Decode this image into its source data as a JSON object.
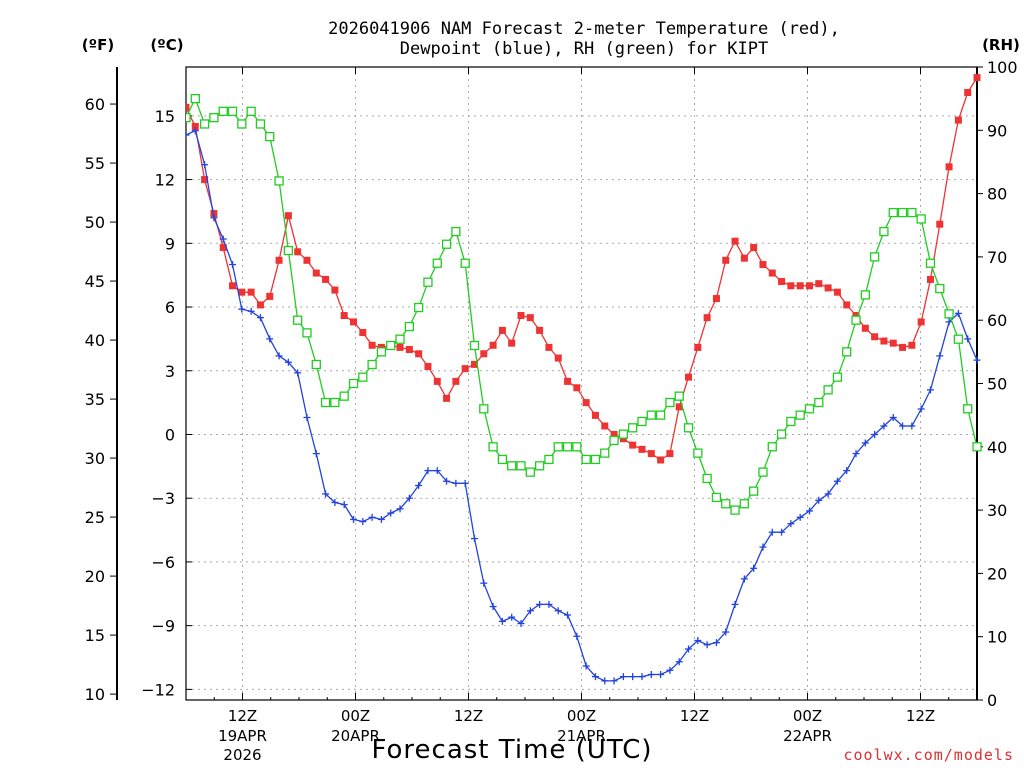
{
  "title_line1": "2026041906 NAM Forecast 2-meter Temperature (red),",
  "title_line2": "Dewpoint (blue), RH (green) for KIPT",
  "unit_f": "(ºF)",
  "unit_c": "(ºC)",
  "unit_rh": "(RH)",
  "xlabel": "Forecast Time (UTC)",
  "credit": "coolwx.com/models",
  "colors": {
    "temperature": "#ee3333",
    "dewpoint": "#2244dd",
    "rh": "#22cc22"
  },
  "chart_data": {
    "type": "line",
    "x_unit": "forecast hour from 2026-04-19 06Z",
    "x_range": [
      0,
      84
    ],
    "x_ticks": [
      {
        "hour": 6,
        "label": "12Z",
        "label2": "19APR",
        "label3": "2026"
      },
      {
        "hour": 18,
        "label": "00Z",
        "label2": "20APR",
        "label3": ""
      },
      {
        "hour": 30,
        "label": "12Z",
        "label2": "",
        "label3": ""
      },
      {
        "hour": 42,
        "label": "00Z",
        "label2": "21APR",
        "label3": ""
      },
      {
        "hour": 54,
        "label": "12Z",
        "label2": "",
        "label3": ""
      },
      {
        "hour": 66,
        "label": "00Z",
        "label2": "22APR",
        "label3": ""
      },
      {
        "hour": 78,
        "label": "12Z",
        "label2": "",
        "label3": ""
      }
    ],
    "y_celsius": {
      "range": [
        -12.5,
        17.3
      ],
      "ticks": [
        "-12",
        "-9",
        "-6",
        "-3",
        "0",
        "3",
        "6",
        "9",
        "12",
        "15"
      ]
    },
    "y_fahrenheit": {
      "ticks": [
        "10",
        "15",
        "20",
        "25",
        "30",
        "35",
        "40",
        "45",
        "50",
        "55",
        "60"
      ]
    },
    "y_rh": {
      "range": [
        0,
        100
      ],
      "ticks": [
        "0",
        "10",
        "20",
        "30",
        "40",
        "50",
        "60",
        "70",
        "80",
        "90",
        "100"
      ]
    },
    "grid": true,
    "series": [
      {
        "name": "Temperature",
        "axis": "celsius",
        "marker": "filled-square",
        "values": [
          15.4,
          14.5,
          12.0,
          10.4,
          8.8,
          7.0,
          6.7,
          6.7,
          6.1,
          6.5,
          8.2,
          10.3,
          8.6,
          8.2,
          7.6,
          7.3,
          6.8,
          5.6,
          5.3,
          4.8,
          4.2,
          4.1,
          4.2,
          4.1,
          4.0,
          3.8,
          3.2,
          2.5,
          1.7,
          2.5,
          3.1,
          3.3,
          3.8,
          4.2,
          4.9,
          4.3,
          5.6,
          5.5,
          4.9,
          4.1,
          3.6,
          2.5,
          2.2,
          1.5,
          0.9,
          0.4,
          0.0,
          -0.2,
          -0.5,
          -0.7,
          -0.9,
          -1.2,
          -0.9,
          1.3,
          2.7,
          4.1,
          5.5,
          6.4,
          8.2,
          9.1,
          8.3,
          8.8,
          8.0,
          7.6,
          7.2,
          7.0,
          7.0,
          7.0,
          7.1,
          6.9,
          6.7,
          6.1,
          5.6,
          5.0,
          4.6,
          4.4,
          4.3,
          4.1,
          4.2,
          5.3,
          7.3,
          9.9,
          12.6,
          14.8,
          16.1,
          16.8
        ]
      },
      {
        "name": "Dewpoint",
        "axis": "celsius",
        "marker": "plus",
        "values": [
          14.1,
          14.3,
          12.7,
          10.2,
          9.2,
          8.0,
          5.9,
          5.8,
          5.5,
          4.5,
          3.7,
          3.4,
          2.9,
          0.8,
          -0.9,
          -2.8,
          -3.2,
          -3.3,
          -4.0,
          -4.1,
          -3.9,
          -4.0,
          -3.7,
          -3.5,
          -3.0,
          -2.4,
          -1.7,
          -1.7,
          -2.2,
          -2.3,
          -2.3,
          -4.9,
          -7.0,
          -8.1,
          -8.8,
          -8.6,
          -8.9,
          -8.3,
          -8.0,
          -8.0,
          -8.3,
          -8.5,
          -9.5,
          -10.9,
          -11.4,
          -11.6,
          -11.6,
          -11.4,
          -11.4,
          -11.4,
          -11.3,
          -11.3,
          -11.1,
          -10.7,
          -10.1,
          -9.7,
          -9.9,
          -9.8,
          -9.3,
          -8.0,
          -6.8,
          -6.3,
          -5.3,
          -4.6,
          -4.6,
          -4.2,
          -3.9,
          -3.6,
          -3.1,
          -2.8,
          -2.2,
          -1.7,
          -0.9,
          -0.4,
          0.0,
          0.4,
          0.8,
          0.4,
          0.4,
          1.2,
          2.1,
          3.7,
          5.3,
          5.7,
          4.5,
          3.5
        ]
      },
      {
        "name": "RH",
        "axis": "rh",
        "marker": "open-square",
        "values": [
          92,
          95,
          91,
          92,
          93,
          93,
          91,
          93,
          91,
          89,
          82,
          71,
          60,
          58,
          53,
          47,
          47,
          48,
          50,
          51,
          53,
          55,
          56,
          57,
          59,
          62,
          66,
          69,
          72,
          74,
          69,
          56,
          46,
          40,
          38,
          37,
          37,
          36,
          37,
          38,
          40,
          40,
          40,
          38,
          38,
          39,
          41,
          42,
          43,
          44,
          45,
          45,
          47,
          48,
          43,
          39,
          35,
          32,
          31,
          30,
          31,
          33,
          36,
          40,
          42,
          44,
          45,
          46,
          47,
          49,
          51,
          55,
          60,
          64,
          70,
          74,
          77,
          77,
          77,
          76,
          69,
          65,
          61,
          57,
          46,
          40
        ]
      }
    ]
  }
}
